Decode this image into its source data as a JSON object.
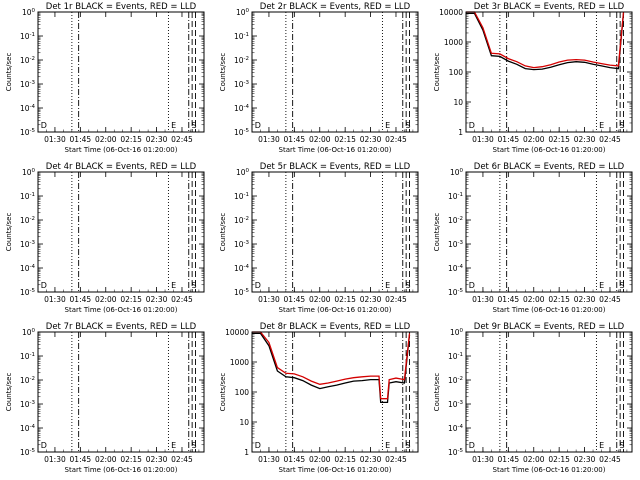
{
  "colors": {
    "events": "#000000",
    "lld": "#d40000",
    "axes": "#000000",
    "background": "#ffffff"
  },
  "chart_data": [
    {
      "type": "line",
      "title": "Det 1r BLACK = Events, RED = LLD",
      "xlabel": "Start Time (06-Oct-16 01:20:00)",
      "ylabel": "Counts/sec",
      "x_ticks": [
        "01:30",
        "01:45",
        "02:00",
        "02:15",
        "02:30",
        "02:45"
      ],
      "xlim": [
        "01:20",
        "02:58"
      ],
      "y_scale": "log",
      "y_ticks": [
        "10^0",
        "10^-1",
        "10^-2",
        "10^-3",
        "10^-4",
        "10^-5"
      ],
      "ylim": [
        1e-05,
        1
      ],
      "vlines": {
        "dotted": [
          "01:40",
          "02:37"
        ],
        "dashdot": [
          "01:44",
          "02:49"
        ],
        "dashed": [
          "02:51",
          "02:53"
        ]
      },
      "markers": [
        {
          "label": "D",
          "x": "01:21"
        },
        {
          "label": "E",
          "x": "02:38"
        },
        {
          "label": "S",
          "x": "02:50"
        }
      ],
      "series": []
    },
    {
      "type": "line",
      "title": "Det 2r BLACK = Events, RED = LLD",
      "xlabel": "Start Time (06-Oct-16 01:20:00)",
      "ylabel": "Counts/sec",
      "x_ticks": [
        "01:30",
        "01:45",
        "02:00",
        "02:15",
        "02:30",
        "02:45"
      ],
      "xlim": [
        "01:20",
        "02:58"
      ],
      "y_scale": "log",
      "y_ticks": [
        "10^0",
        "10^-1",
        "10^-2",
        "10^-3",
        "10^-4",
        "10^-5"
      ],
      "ylim": [
        1e-05,
        1
      ],
      "vlines": {
        "dotted": [
          "01:40",
          "02:37"
        ],
        "dashdot": [
          "01:44",
          "02:49"
        ],
        "dashed": [
          "02:51",
          "02:53"
        ]
      },
      "markers": [
        {
          "label": "D",
          "x": "01:21"
        },
        {
          "label": "E",
          "x": "02:38"
        },
        {
          "label": "S",
          "x": "02:50"
        }
      ],
      "series": []
    },
    {
      "type": "line",
      "title": "Det 3r BLACK = Events, RED = LLD",
      "xlabel": "Start Time (06-Oct-16 01:20:00)",
      "ylabel": "Counts/sec",
      "x_ticks": [
        "01:30",
        "01:45",
        "02:00",
        "02:15",
        "02:30",
        "02:45"
      ],
      "xlim": [
        "01:20",
        "02:58"
      ],
      "y_scale": "log",
      "y_ticks": [
        "10000",
        "1000",
        "100",
        "10",
        "1"
      ],
      "ylim": [
        1,
        10000
      ],
      "vlines": {
        "dotted": [
          "01:40",
          "02:37"
        ],
        "dashdot": [
          "01:44",
          "02:49"
        ],
        "dashed": [
          "02:51",
          "02:53"
        ]
      },
      "markers": [
        {
          "label": "D",
          "x": "01:21"
        },
        {
          "label": "E",
          "x": "02:38"
        },
        {
          "label": "S",
          "x": "02:50"
        }
      ],
      "series": [
        {
          "color": "#000000",
          "x": [
            "01:20",
            "01:25",
            "01:30",
            "01:35",
            "01:40",
            "01:45",
            "01:50",
            "01:55",
            "02:00",
            "02:05",
            "02:10",
            "02:15",
            "02:20",
            "02:25",
            "02:30",
            "02:35",
            "02:40",
            "02:45",
            "02:50",
            "02:53"
          ],
          "y": [
            9000,
            9000,
            2500,
            350,
            330,
            230,
            180,
            130,
            120,
            125,
            145,
            175,
            205,
            220,
            210,
            180,
            160,
            140,
            130,
            9000
          ]
        },
        {
          "color": "#d40000",
          "x": [
            "01:20",
            "01:25",
            "01:30",
            "01:35",
            "01:40",
            "01:45",
            "01:50",
            "01:55",
            "02:00",
            "02:05",
            "02:10",
            "02:15",
            "02:20",
            "02:25",
            "02:30",
            "02:35",
            "02:40",
            "02:45",
            "02:50",
            "02:53"
          ],
          "y": [
            10000,
            10000,
            3000,
            420,
            400,
            280,
            220,
            160,
            140,
            150,
            175,
            215,
            250,
            260,
            250,
            215,
            190,
            170,
            160,
            10000
          ]
        }
      ]
    },
    {
      "type": "line",
      "title": "Det 4r BLACK = Events, RED = LLD",
      "xlabel": "Start Time (06-Oct-16 01:20:00)",
      "ylabel": "Counts/sec",
      "x_ticks": [
        "01:30",
        "01:45",
        "02:00",
        "02:15",
        "02:30",
        "02:45"
      ],
      "xlim": [
        "01:20",
        "02:58"
      ],
      "y_scale": "log",
      "y_ticks": [
        "10^0",
        "10^-1",
        "10^-2",
        "10^-3",
        "10^-4",
        "10^-5"
      ],
      "ylim": [
        1e-05,
        1
      ],
      "vlines": {
        "dotted": [
          "01:40",
          "02:37"
        ],
        "dashdot": [
          "01:44",
          "02:49"
        ],
        "dashed": [
          "02:51",
          "02:53"
        ]
      },
      "markers": [
        {
          "label": "D",
          "x": "01:21"
        },
        {
          "label": "E",
          "x": "02:38"
        },
        {
          "label": "S",
          "x": "02:50"
        }
      ],
      "series": []
    },
    {
      "type": "line",
      "title": "Det 5r BLACK = Events, RED = LLD",
      "xlabel": "Start Time (06-Oct-16 01:20:00)",
      "ylabel": "Counts/sec",
      "x_ticks": [
        "01:30",
        "01:45",
        "02:00",
        "02:15",
        "02:30",
        "02:45"
      ],
      "xlim": [
        "01:20",
        "02:58"
      ],
      "y_scale": "log",
      "y_ticks": [
        "10^0",
        "10^-1",
        "10^-2",
        "10^-3",
        "10^-4",
        "10^-5"
      ],
      "ylim": [
        1e-05,
        1
      ],
      "vlines": {
        "dotted": [
          "01:40",
          "02:37"
        ],
        "dashdot": [
          "01:44",
          "02:49"
        ],
        "dashed": [
          "02:51",
          "02:53"
        ]
      },
      "markers": [
        {
          "label": "D",
          "x": "01:21"
        },
        {
          "label": "E",
          "x": "02:38"
        },
        {
          "label": "S",
          "x": "02:50"
        }
      ],
      "series": []
    },
    {
      "type": "line",
      "title": "Det 6r BLACK = Events, RED = LLD",
      "xlabel": "Start Time (06-Oct-16 01:20:00)",
      "ylabel": "Counts/sec",
      "x_ticks": [
        "01:30",
        "01:45",
        "02:00",
        "02:15",
        "02:30",
        "02:45"
      ],
      "xlim": [
        "01:20",
        "02:58"
      ],
      "y_scale": "log",
      "y_ticks": [
        "10^0",
        "10^-1",
        "10^-2",
        "10^-3",
        "10^-4",
        "10^-5"
      ],
      "ylim": [
        1e-05,
        1
      ],
      "vlines": {
        "dotted": [
          "01:40",
          "02:37"
        ],
        "dashdot": [
          "01:44",
          "02:49"
        ],
        "dashed": [
          "02:51",
          "02:53"
        ]
      },
      "markers": [
        {
          "label": "D",
          "x": "01:21"
        },
        {
          "label": "E",
          "x": "02:38"
        },
        {
          "label": "S",
          "x": "02:50"
        }
      ],
      "series": []
    },
    {
      "type": "line",
      "title": "Det 7r BLACK = Events, RED = LLD",
      "xlabel": "Start Time (06-Oct-16 01:20:00)",
      "ylabel": "Counts/sec",
      "x_ticks": [
        "01:30",
        "01:45",
        "02:00",
        "02:15",
        "02:30",
        "02:45"
      ],
      "xlim": [
        "01:20",
        "02:58"
      ],
      "y_scale": "log",
      "y_ticks": [
        "10^0",
        "10^-1",
        "10^-2",
        "10^-3",
        "10^-4",
        "10^-5"
      ],
      "ylim": [
        1e-05,
        1
      ],
      "vlines": {
        "dotted": [
          "01:40",
          "02:37"
        ],
        "dashdot": [
          "01:44",
          "02:49"
        ],
        "dashed": [
          "02:51",
          "02:53"
        ]
      },
      "markers": [
        {
          "label": "D",
          "x": "01:21"
        },
        {
          "label": "E",
          "x": "02:38"
        },
        {
          "label": "S",
          "x": "02:50"
        }
      ],
      "series": []
    },
    {
      "type": "line",
      "title": "Det 8r BLACK = Events, RED = LLD",
      "xlabel": "Start Time (06-Oct-16 01:20:00)",
      "ylabel": "Counts/sec",
      "x_ticks": [
        "01:30",
        "01:45",
        "02:00",
        "02:15",
        "02:30",
        "02:45"
      ],
      "xlim": [
        "01:20",
        "02:58"
      ],
      "y_scale": "log",
      "y_ticks": [
        "10000",
        "1000",
        "100",
        "10",
        "1"
      ],
      "ylim": [
        1,
        10000
      ],
      "vlines": {
        "dotted": [
          "01:40",
          "02:37"
        ],
        "dashdot": [
          "01:44",
          "02:49"
        ],
        "dashed": [
          "02:51",
          "02:53"
        ]
      },
      "markers": [
        {
          "label": "D",
          "x": "01:21"
        },
        {
          "label": "E",
          "x": "02:38"
        },
        {
          "label": "S",
          "x": "02:50"
        }
      ],
      "series": [
        {
          "color": "#000000",
          "x": [
            "01:20",
            "01:25",
            "01:30",
            "01:35",
            "01:40",
            "01:45",
            "01:50",
            "01:55",
            "02:00",
            "02:05",
            "02:10",
            "02:15",
            "02:20",
            "02:25",
            "02:30",
            "02:35",
            "02:36",
            "02:40",
            "02:41",
            "02:45",
            "02:50",
            "02:53"
          ],
          "y": [
            9000,
            9000,
            3500,
            500,
            320,
            300,
            240,
            170,
            130,
            150,
            170,
            200,
            230,
            240,
            260,
            260,
            45,
            45,
            200,
            220,
            200,
            8000
          ]
        },
        {
          "color": "#d40000",
          "x": [
            "01:20",
            "01:25",
            "01:30",
            "01:35",
            "01:40",
            "01:45",
            "01:50",
            "01:55",
            "02:00",
            "02:05",
            "02:10",
            "02:15",
            "02:20",
            "02:25",
            "02:30",
            "02:35",
            "02:36",
            "02:40",
            "02:41",
            "02:45",
            "02:50",
            "02:53"
          ],
          "y": [
            10000,
            10000,
            4500,
            650,
            420,
            400,
            320,
            230,
            180,
            200,
            230,
            270,
            300,
            320,
            340,
            340,
            60,
            60,
            260,
            290,
            260,
            9000
          ]
        }
      ]
    },
    {
      "type": "line",
      "title": "Det 9r BLACK = Events, RED = LLD",
      "xlabel": "Start Time (06-Oct-16 01:20:00)",
      "ylabel": "Counts/sec",
      "x_ticks": [
        "01:30",
        "01:45",
        "02:00",
        "02:15",
        "02:30",
        "02:45"
      ],
      "xlim": [
        "01:20",
        "02:58"
      ],
      "y_scale": "log",
      "y_ticks": [
        "10^0",
        "10^-1",
        "10^-2",
        "10^-3",
        "10^-4",
        "10^-5"
      ],
      "ylim": [
        1e-05,
        1
      ],
      "vlines": {
        "dotted": [
          "01:40",
          "02:37"
        ],
        "dashdot": [
          "01:44",
          "02:49"
        ],
        "dashed": [
          "02:51",
          "02:53"
        ]
      },
      "markers": [
        {
          "label": "D",
          "x": "01:21"
        },
        {
          "label": "E",
          "x": "02:38"
        },
        {
          "label": "S",
          "x": "02:50"
        }
      ],
      "series": []
    }
  ]
}
